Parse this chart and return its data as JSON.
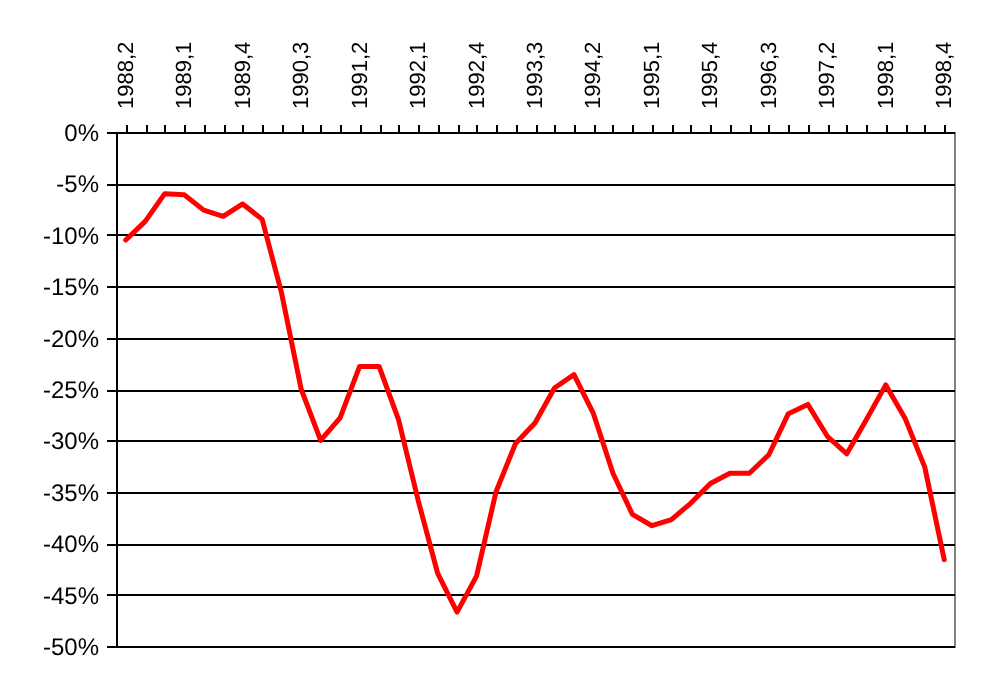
{
  "chart_data": {
    "type": "line",
    "categories": [
      "1988,2",
      null,
      null,
      "1989,1",
      null,
      null,
      "1989,4",
      null,
      null,
      "1990,3",
      null,
      null,
      "1991,2",
      null,
      null,
      "1992,1",
      null,
      null,
      "1992,4",
      null,
      null,
      "1993,3",
      null,
      null,
      "1994,2",
      null,
      null,
      "1995,1",
      null,
      null,
      "1995,4",
      null,
      null,
      "1996,3",
      null,
      null,
      "1997,2",
      null,
      null,
      "1998,1",
      null,
      null,
      "1998,4"
    ],
    "series": [
      {
        "color": "#ff0000",
        "values": [
          -10.5,
          -8.7,
          -6.0,
          -6.1,
          -7.6,
          -8.2,
          -7.0,
          -8.5,
          -15.7,
          -25.0,
          -30.0,
          -27.8,
          -22.8,
          -22.8,
          -28.0,
          -35.8,
          -42.9,
          -46.7,
          -43.2,
          -35.0,
          -30.3,
          -28.3,
          -24.9,
          -23.6,
          -27.4,
          -33.2,
          -37.2,
          -38.3,
          -37.7,
          -36.1,
          -34.2,
          -33.2,
          -33.2,
          -31.4,
          -27.4,
          -26.5,
          -29.6,
          -31.3,
          -28.0,
          -24.6,
          -27.9,
          -32.6,
          -41.6
        ]
      }
    ],
    "ylim": [
      -50,
      0
    ],
    "yticks": [
      {
        "value": -50,
        "label": "-50%"
      },
      {
        "value": -45,
        "label": "-45%"
      },
      {
        "value": -40,
        "label": "-40%"
      },
      {
        "value": -35,
        "label": "-35%"
      },
      {
        "value": -30,
        "label": "-30%"
      },
      {
        "value": -25,
        "label": "-25%"
      },
      {
        "value": -20,
        "label": "-20%"
      },
      {
        "value": -15,
        "label": "-15%"
      },
      {
        "value": -10,
        "label": "-10%"
      },
      {
        "value": -5,
        "label": "-5%"
      },
      {
        "value": 0,
        "label": "0%"
      }
    ],
    "grid": "y"
  }
}
